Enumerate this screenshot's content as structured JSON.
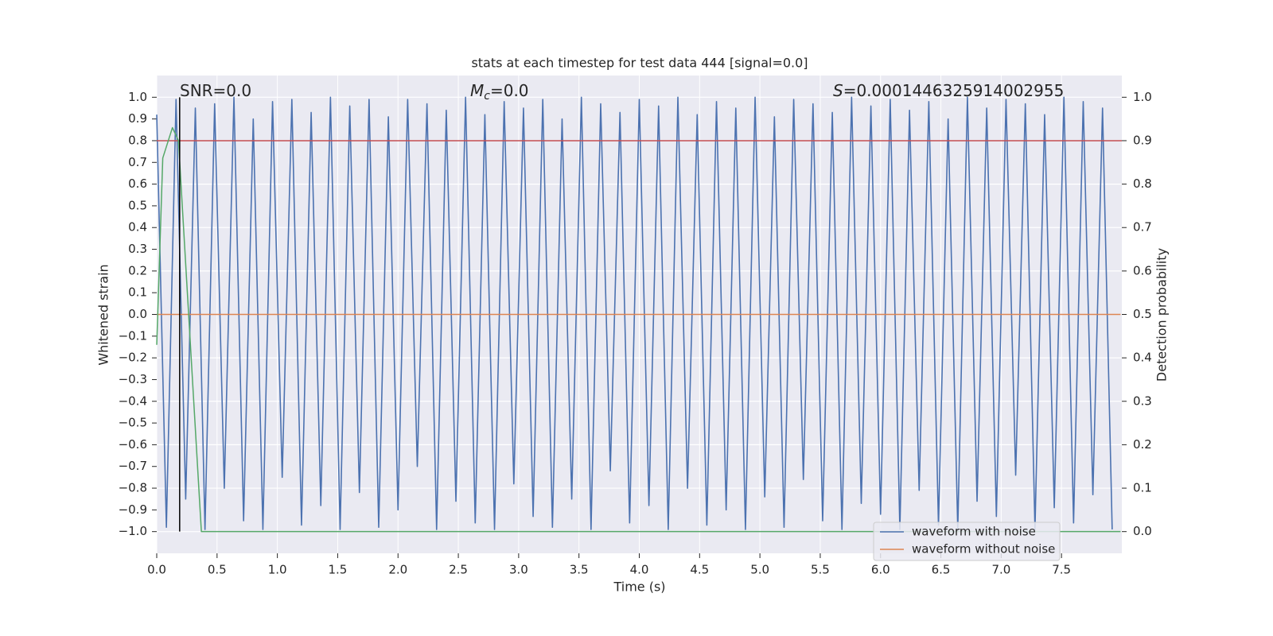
{
  "chart_data": {
    "type": "line",
    "title": "stats at each timestep for test data 444 [signal=0.0]",
    "xlabel": "Time (s)",
    "ylabel": "Whitened strain",
    "y2label": "Detection probability",
    "xlim": [
      0,
      8
    ],
    "ylim": [
      -1.1,
      1.1
    ],
    "y2lim": [
      -0.05,
      1.05
    ],
    "grid": true,
    "legend": "lower right",
    "xticks": [
      {
        "value": 0,
        "label": "0.0"
      },
      0.5,
      {
        "value": 1,
        "label": "1.0"
      },
      1.5,
      {
        "value": 2,
        "label": "2.0"
      },
      2.5,
      {
        "value": 3,
        "label": "3.0"
      },
      3.5,
      {
        "value": 4,
        "label": "4.0"
      },
      4.5,
      {
        "value": 5,
        "label": "5.0"
      },
      5.5,
      {
        "value": 6,
        "label": "6.0"
      },
      6.5,
      {
        "value": 7,
        "label": "7.0"
      },
      7.5
    ],
    "yticks": [
      {
        "value": -1,
        "label": "−1.0"
      },
      {
        "value": -0.9,
        "label": "−0.9"
      },
      {
        "value": -0.8,
        "label": "−0.8"
      },
      {
        "value": -0.7,
        "label": "−0.7"
      },
      {
        "value": -0.6,
        "label": "−0.6"
      },
      {
        "value": -0.5,
        "label": "−0.5"
      },
      {
        "value": -0.4,
        "label": "−0.4"
      },
      {
        "value": -0.3,
        "label": "−0.3"
      },
      {
        "value": -0.2,
        "label": "−0.2"
      },
      {
        "value": -0.1,
        "label": "−0.1"
      },
      {
        "value": 0,
        "label": "0.0"
      },
      0.1,
      0.2,
      0.3,
      0.4,
      0.5,
      0.6,
      0.7,
      0.8,
      0.9,
      {
        "value": 1,
        "label": "1.0"
      }
    ],
    "y2ticks": [
      {
        "value": 0,
        "label": "0.0"
      },
      0.1,
      0.2,
      0.3,
      0.4,
      0.5,
      0.6,
      0.7,
      0.8,
      0.9,
      {
        "value": 1,
        "label": "1.0"
      }
    ],
    "annotations": [
      {
        "text": "SNR=0.0"
      },
      {
        "symbol": "M",
        "subscript": "c",
        "text": "=0.0"
      },
      {
        "symbol": "S",
        "text": "=0.0001446325914002955"
      }
    ],
    "series": [
      {
        "name": "waveform with noise",
        "color": "#4c72b0",
        "x": [
          0,
          0.08,
          0.16,
          0.24,
          0.32,
          0.4,
          0.48,
          0.56,
          0.64,
          0.72,
          0.8,
          0.88,
          0.96,
          1.04,
          1.12,
          1.2,
          1.28,
          1.36,
          1.44,
          1.52,
          1.6,
          1.68,
          1.76,
          1.84,
          1.92,
          2,
          2.08,
          2.16,
          2.24,
          2.32,
          2.4,
          2.48,
          2.56,
          2.64,
          2.72,
          2.8,
          2.88,
          2.96,
          3.04,
          3.12,
          3.2,
          3.28,
          3.36,
          3.44,
          3.52,
          3.6,
          3.68,
          3.76,
          3.84,
          3.92,
          4,
          4.08,
          4.16,
          4.24,
          4.32,
          4.4,
          4.48,
          4.56,
          4.64,
          4.72,
          4.8,
          4.88,
          4.96,
          5.04,
          5.12,
          5.2,
          5.28,
          5.36,
          5.44,
          5.52,
          5.6,
          5.68,
          5.76,
          5.84,
          5.92,
          6,
          6.08,
          6.16,
          6.24,
          6.32,
          6.4,
          6.48,
          6.56,
          6.64,
          6.72,
          6.8,
          6.88,
          6.96,
          7.04,
          7.12,
          7.2,
          7.28,
          7.36,
          7.44,
          7.52,
          7.6,
          7.68,
          7.76,
          7.84,
          7.92
        ],
        "values": [
          0.92,
          -0.98,
          0.99,
          -0.85,
          0.95,
          -0.99,
          0.97,
          -0.8,
          1.0,
          -0.95,
          0.9,
          -0.99,
          0.98,
          -0.75,
          0.99,
          -0.97,
          0.93,
          -0.88,
          1.0,
          -0.99,
          0.96,
          -0.82,
          0.99,
          -0.98,
          0.91,
          -0.9,
          0.99,
          -0.7,
          0.97,
          -0.99,
          0.94,
          -0.86,
          1.0,
          -0.96,
          0.92,
          -0.99,
          0.98,
          -0.78,
          0.95,
          -0.93,
          0.99,
          -0.98,
          0.9,
          -0.85,
          1.0,
          -0.99,
          0.97,
          -0.72,
          0.93,
          -0.96,
          0.99,
          -0.88,
          0.96,
          -0.99,
          1.0,
          -0.8,
          0.92,
          -0.97,
          0.98,
          -0.9,
          0.95,
          -0.99,
          1.0,
          -0.84,
          0.91,
          -0.98,
          0.99,
          -0.76,
          0.97,
          -0.95,
          0.93,
          -0.99,
          1.0,
          -0.87,
          0.96,
          -0.92,
          0.99,
          -0.99,
          0.94,
          -0.81,
          0.98,
          -0.97,
          0.9,
          -0.99,
          1.0,
          -0.86,
          0.95,
          -0.93,
          0.99,
          -0.74,
          0.97,
          -0.99,
          0.92,
          -0.89,
          1.0,
          -0.96,
          0.98,
          -0.83,
          0.95,
          -0.99
        ]
      },
      {
        "name": "waveform without noise",
        "color": "#dd8452",
        "x": [
          0,
          7.99
        ],
        "values": [
          0,
          0
        ]
      }
    ],
    "lines": [
      {
        "color": "#55a868",
        "axis": "y2",
        "x": [
          0,
          0.05,
          0.13,
          0.18,
          0.37,
          7.99
        ],
        "values": [
          0.43,
          0.86,
          0.93,
          0.9,
          0,
          0
        ]
      }
    ],
    "hlines": [
      {
        "color": "#c44e52",
        "axis": "y2",
        "value": 0.9
      }
    ],
    "vlines": [
      {
        "color": "#000000",
        "x": 0.19,
        "y": [
          -1,
          1
        ]
      }
    ]
  }
}
